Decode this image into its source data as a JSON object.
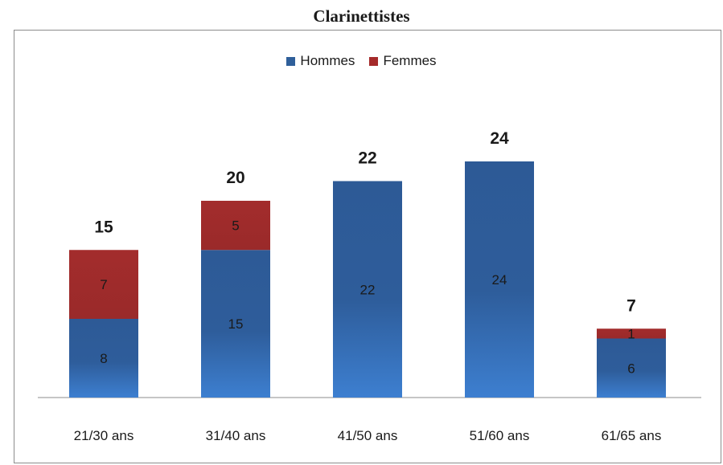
{
  "chart_data": {
    "type": "bar",
    "stacked": true,
    "title": "Clarinettistes",
    "categories": [
      "21/30 ans",
      "31/40 ans",
      "41/50 ans",
      "51/60 ans",
      "61/65 ans"
    ],
    "series": [
      {
        "name": "Hommes",
        "values": [
          8,
          15,
          22,
          24,
          6
        ],
        "color": "#2f5f9a"
      },
      {
        "name": "Femmes",
        "values": [
          7,
          5,
          0,
          0,
          1
        ],
        "color": "#a52a2a"
      }
    ],
    "totals": [
      15,
      20,
      22,
      24,
      7
    ],
    "legend_position": "top",
    "grid": false,
    "ylim": [
      0,
      30
    ]
  }
}
